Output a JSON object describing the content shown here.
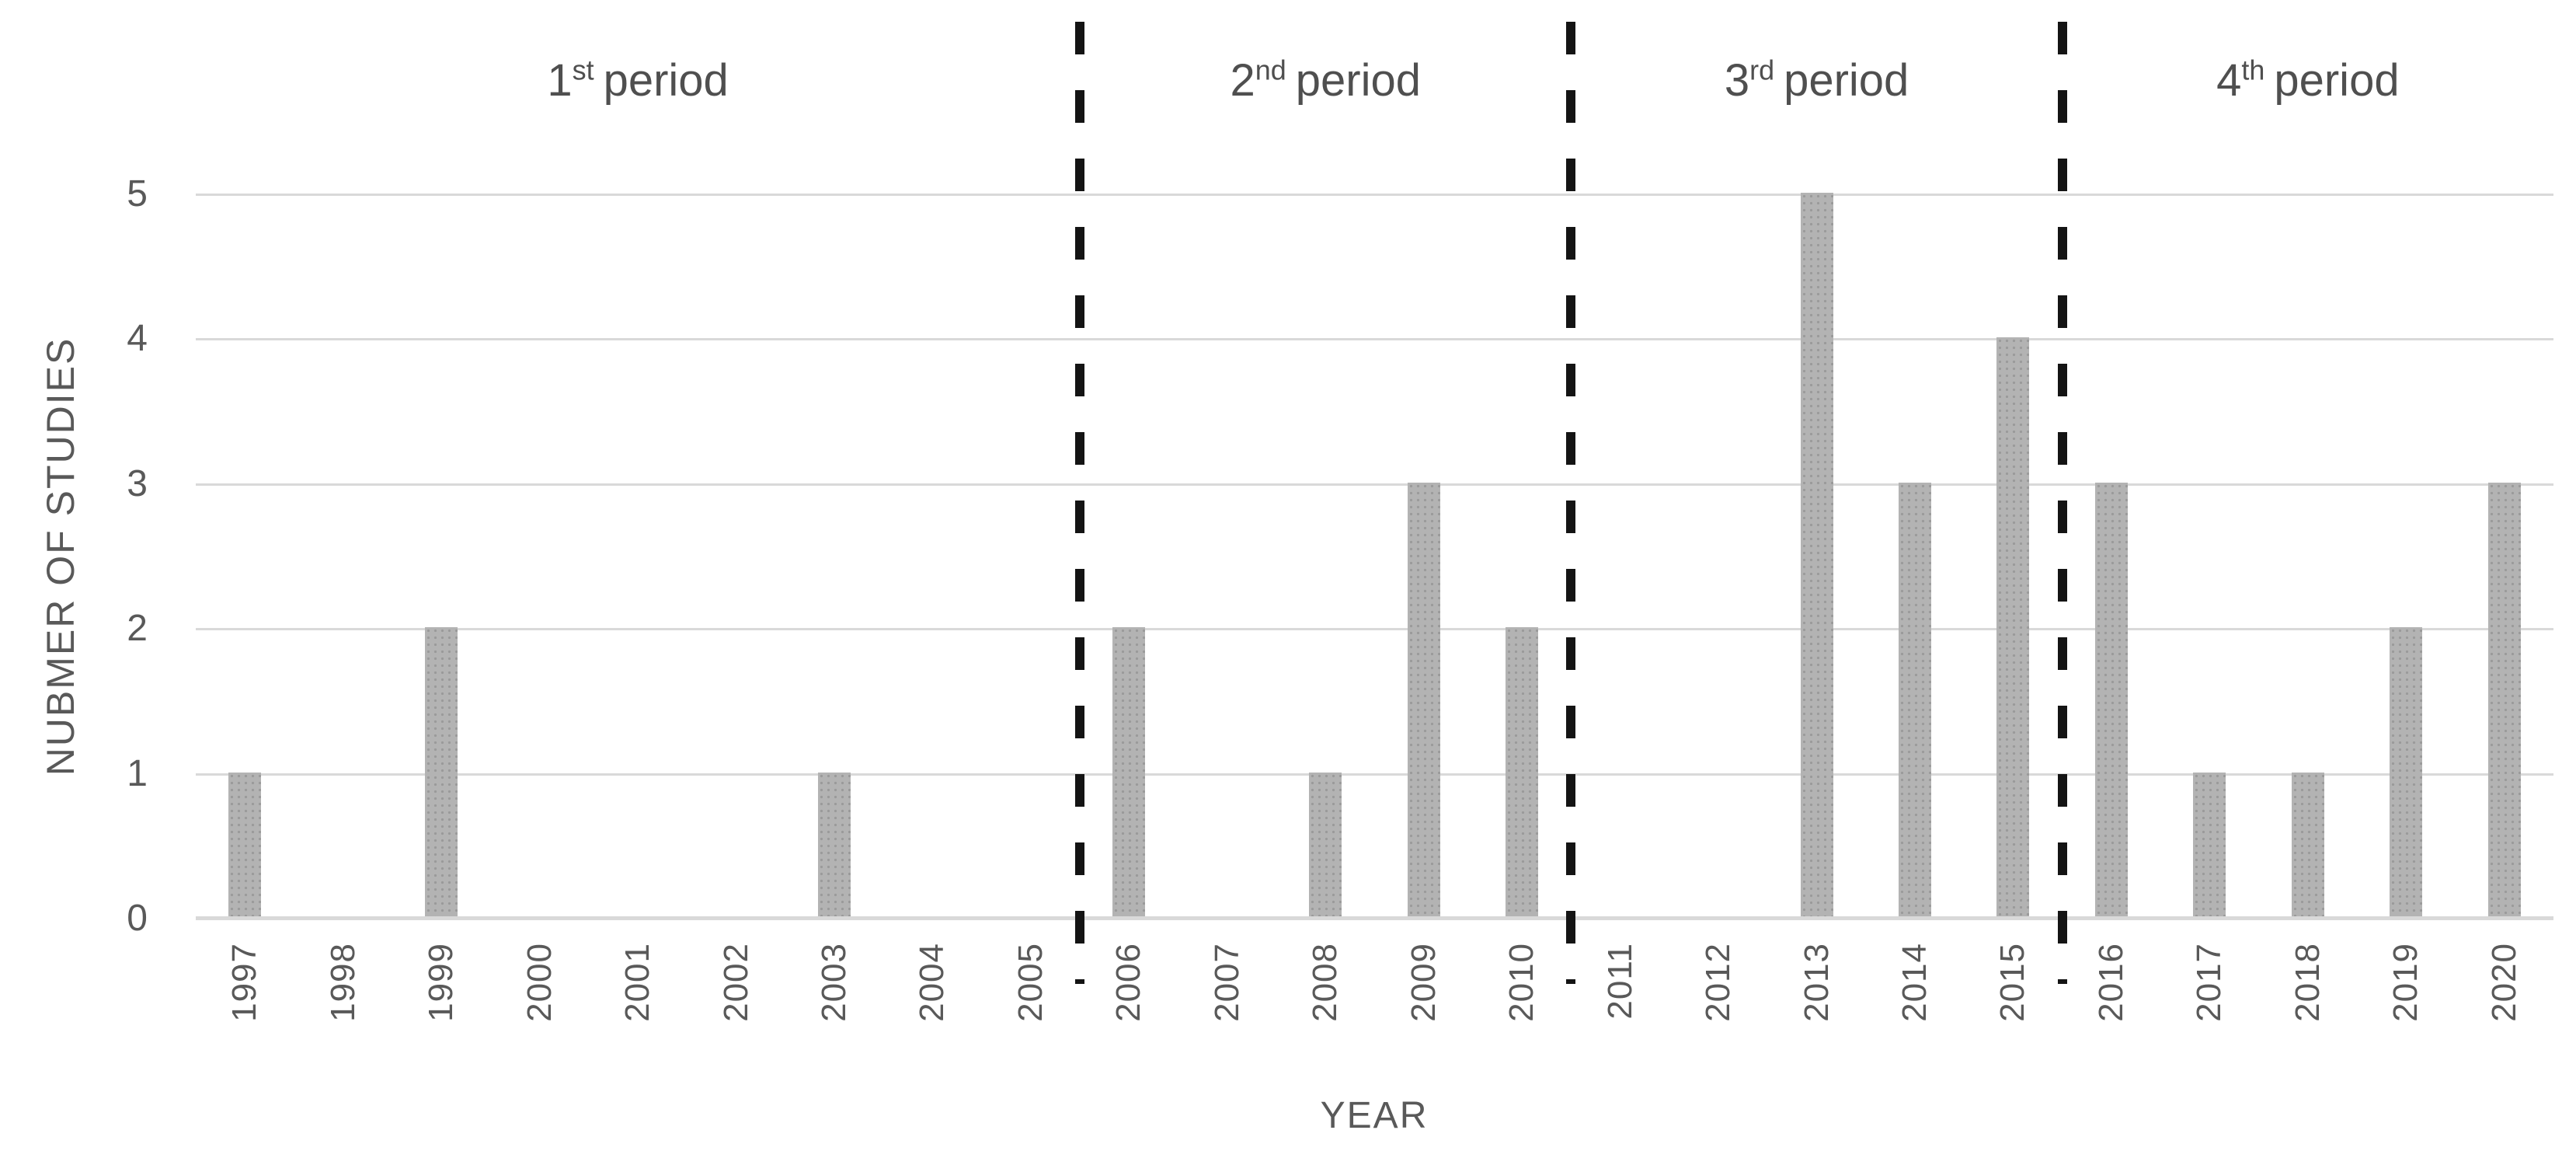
{
  "chart_data": {
    "type": "bar",
    "title": "",
    "xlabel": "YEAR",
    "ylabel": "NUBMER OF STUDIES",
    "categories": [
      "1997",
      "1998",
      "1999",
      "2000",
      "2001",
      "2002",
      "2003",
      "2004",
      "2005",
      "2006",
      "2007",
      "2008",
      "2009",
      "2010",
      "2011",
      "2012",
      "2013",
      "2014",
      "2015",
      "2016",
      "2017",
      "2018",
      "2019",
      "2020"
    ],
    "values": [
      1,
      0,
      2,
      0,
      0,
      0,
      1,
      0,
      0,
      2,
      0,
      1,
      3,
      2,
      0,
      0,
      5,
      3,
      4,
      3,
      1,
      1,
      2,
      3
    ],
    "ylim": [
      0,
      5
    ],
    "yticks": [
      0,
      1,
      2,
      3,
      4,
      5
    ],
    "grid": true,
    "legend": false,
    "bar_color": "#b3b3b3",
    "bar_dot_color": "#9a9a9a",
    "gridline_color": "#d9d9d9",
    "text_color": "#595959",
    "separator_color": "#141414",
    "periods": [
      {
        "ordinal": "1",
        "suffix": "st",
        "word": "period",
        "start_year": "1997",
        "end_year": "2005"
      },
      {
        "ordinal": "2",
        "suffix": "nd",
        "word": "period",
        "start_year": "2006",
        "end_year": "2010"
      },
      {
        "ordinal": "3",
        "suffix": "rd",
        "word": "period",
        "start_year": "2011",
        "end_year": "2015"
      },
      {
        "ordinal": "4",
        "suffix": "th",
        "word": "period",
        "start_year": "2016",
        "end_year": "2020"
      }
    ],
    "separators_after_category_index": [
      8,
      13,
      18
    ]
  }
}
